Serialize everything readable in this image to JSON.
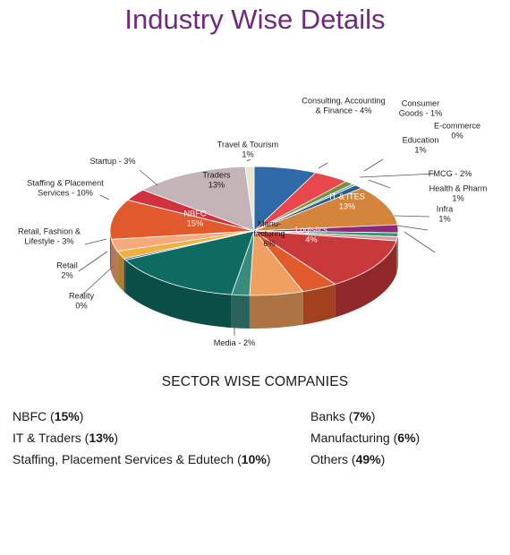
{
  "title": "Industry Wise Details",
  "chart_data": {
    "type": "pie",
    "title": "Industry Wise Details",
    "slices": [
      {
        "name": "Bank",
        "label_lines": [
          "Bank",
          "7%"
        ],
        "value": 7,
        "color": "#2e6aa8",
        "placement": "inside"
      },
      {
        "name": "Consulting, Accounting & Finance",
        "label_lines": [
          "Consulting, Accounting",
          "& Finance - 4%"
        ],
        "value": 4,
        "color": "#e8474d",
        "placement": "outside"
      },
      {
        "name": "Consumer Goods",
        "label_lines": [
          "Consumer",
          "Goods - 1%"
        ],
        "value": 1,
        "color": "#7a8f3a",
        "placement": "outside"
      },
      {
        "name": "E-commerce",
        "label_lines": [
          "E-commerce",
          "0%"
        ],
        "value": 0.4,
        "color": "#4ea2c8",
        "placement": "outside"
      },
      {
        "name": "Education",
        "label_lines": [
          "Education",
          "1%"
        ],
        "value": 1,
        "color": "#2a5e86",
        "placement": "outside"
      },
      {
        "name": "Education",
        "label_lines": [
          "Education",
          "10%"
        ],
        "value": 10,
        "color": "#d5843c",
        "placement": "inside"
      },
      {
        "name": "FMCG",
        "label_lines": [
          "FMCG - 2%"
        ],
        "value": 2,
        "color": "#8a2a7a",
        "placement": "outside"
      },
      {
        "name": "Health & Pharm",
        "label_lines": [
          "Health & Pharm",
          "1%"
        ],
        "value": 1,
        "color": "#2e9a6a",
        "placement": "outside"
      },
      {
        "name": "Infra",
        "label_lines": [
          "Infra",
          "1%"
        ],
        "value": 1,
        "color": "#d898a0",
        "placement": "outside"
      },
      {
        "name": "IT & ITES",
        "label_lines": [
          "IT & ITES",
          "13%"
        ],
        "value": 13,
        "color": "#c9383a",
        "placement": "inside"
      },
      {
        "name": "Logistics",
        "label_lines": [
          "Logistics",
          "4%"
        ],
        "value": 4,
        "color": "#e05a2c",
        "placement": "inside"
      },
      {
        "name": "Manufacturing",
        "label_lines": [
          "Manu-",
          "facturing",
          "6%"
        ],
        "value": 6,
        "color": "#f0a060",
        "placement": "inside",
        "label_color": "#1a1a1a"
      },
      {
        "name": "Media",
        "label_lines": [
          "Media - 2%"
        ],
        "value": 2,
        "color": "#3a8a80",
        "placement": "outside"
      },
      {
        "name": "NBFC",
        "label_lines": [
          "NBFC",
          "15%"
        ],
        "value": 15,
        "color": "#0f6b62",
        "placement": "inside"
      },
      {
        "name": "Reality",
        "label_lines": [
          "Reality",
          "0%"
        ],
        "value": 0.4,
        "color": "#2e6a9a",
        "placement": "outside"
      },
      {
        "name": "Retail",
        "label_lines": [
          "Retail",
          "2%"
        ],
        "value": 2,
        "color": "#f3b040",
        "placement": "outside"
      },
      {
        "name": "Retail, Fashion & Lifestyle",
        "label_lines": [
          "Retail, Fashion &",
          "Lifestyle - 3%"
        ],
        "value": 3,
        "color": "#f6a97a",
        "placement": "outside"
      },
      {
        "name": "Staffing & Placement Services",
        "label_lines": [
          "Staffing & Placement",
          "Services - 10%"
        ],
        "value": 10,
        "color": "#e05a2c",
        "placement": "outside"
      },
      {
        "name": "Startup",
        "label_lines": [
          "Startup - 3%"
        ],
        "value": 3,
        "color": "#d1323e",
        "placement": "outside"
      },
      {
        "name": "Traders",
        "label_lines": [
          "Traders",
          "13%"
        ],
        "value": 13,
        "color": "#c4b4b8",
        "placement": "inside",
        "label_color": "#1a1a1a"
      },
      {
        "name": "Travel & Tourism",
        "label_lines": [
          "Travel & Tourism",
          "1%"
        ],
        "value": 1,
        "color": "#ece4cf",
        "placement": "outside"
      }
    ]
  },
  "sector": {
    "heading": "SECTOR WISE COMPANIES",
    "left": [
      {
        "name": "NBFC",
        "pct": "15%"
      },
      {
        "name": "IT & Traders",
        "pct": "13%"
      },
      {
        "name": "Staffing, Placement Services & Edutech",
        "pct": "10%"
      }
    ],
    "right": [
      {
        "name": "Banks",
        "pct": "7%"
      },
      {
        "name": "Manufacturing",
        "pct": "6%"
      },
      {
        "name": "Others",
        "pct": "49%"
      }
    ]
  }
}
